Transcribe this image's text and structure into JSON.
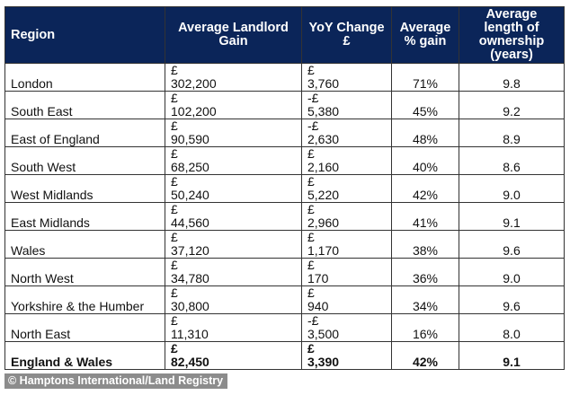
{
  "headers": [
    "Region",
    "Average Landlord Gain",
    "YoY Change £",
    "Average % gain",
    "Average length of ownership (years)"
  ],
  "rows": [
    {
      "region": "London",
      "gain_sym": "£",
      "gain": "302,200",
      "yoy_sym": "£",
      "yoy": "3,760",
      "pct": "71%",
      "years": "9.8"
    },
    {
      "region": "South East",
      "gain_sym": "£",
      "gain": "102,200",
      "yoy_sym": "-£",
      "yoy": "5,380",
      "pct": "45%",
      "years": "9.2"
    },
    {
      "region": "East of England",
      "gain_sym": "£",
      "gain": "90,590",
      "yoy_sym": "-£",
      "yoy": "2,630",
      "pct": "48%",
      "years": "8.9"
    },
    {
      "region": "South West",
      "gain_sym": "£",
      "gain": "68,250",
      "yoy_sym": "£",
      "yoy": "2,160",
      "pct": "40%",
      "years": "8.6"
    },
    {
      "region": "West Midlands",
      "gain_sym": "£",
      "gain": "50,240",
      "yoy_sym": "£",
      "yoy": "5,220",
      "pct": "42%",
      "years": "9.0"
    },
    {
      "region": "East Midlands",
      "gain_sym": "£",
      "gain": "44,560",
      "yoy_sym": "£",
      "yoy": "2,960",
      "pct": "41%",
      "years": "9.1"
    },
    {
      "region": "Wales",
      "gain_sym": "£",
      "gain": "37,120",
      "yoy_sym": "£",
      "yoy": "1,170",
      "pct": "38%",
      "years": "9.6"
    },
    {
      "region": "North West",
      "gain_sym": "£",
      "gain": "34,780",
      "yoy_sym": "£",
      "yoy": "170",
      "pct": "36%",
      "years": "9.0"
    },
    {
      "region": "Yorkshire & the Humber",
      "gain_sym": "£",
      "gain": "30,800",
      "yoy_sym": "£",
      "yoy": "940",
      "pct": "34%",
      "years": "9.6"
    },
    {
      "region": "North East",
      "gain_sym": "£",
      "gain": "11,310",
      "yoy_sym": "-£",
      "yoy": "3,500",
      "pct": "16%",
      "years": "8.0"
    }
  ],
  "total": {
    "region": "England & Wales",
    "gain_sym": "£",
    "gain": "82,450",
    "yoy_sym": "£",
    "yoy": "3,390",
    "pct": "42%",
    "years": "9.1"
  },
  "credit": "© Hamptons International/Land Registry",
  "colors": {
    "header_bg": "#0b2559",
    "header_text": "#ffffff"
  }
}
